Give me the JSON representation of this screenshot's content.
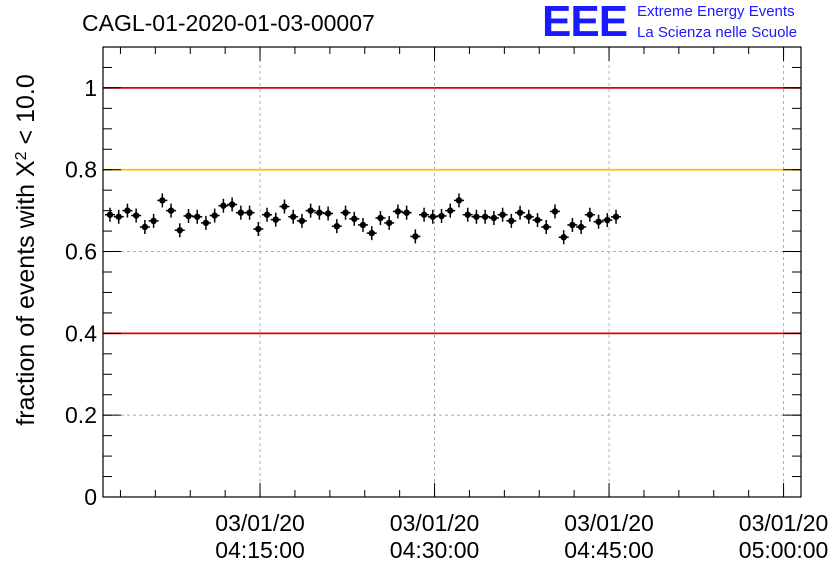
{
  "header": {
    "title": "CAGL-01-2020-01-03-00007",
    "logo_text": "EEE",
    "logo_line1": "Extreme Energy Events",
    "logo_line2": "La Scienza nelle Scuole"
  },
  "colors": {
    "red_line": "#e00000",
    "yellow_line": "#ffc000",
    "logo": "#1a1aff",
    "points": "#000000"
  },
  "chart_data": {
    "type": "scatter",
    "title": "CAGL-01-2020-01-03-00007",
    "ylabel_main": "fraction of events with Χ",
    "ylabel_sup": "2",
    "ylabel_tail": " < 10.0",
    "ylim": [
      0,
      1.1
    ],
    "yticks": [
      "0",
      "0.2",
      "0.4",
      "0.6",
      "0.8",
      "1"
    ],
    "xlim_minutes": [
      0,
      40
    ],
    "xticks": [
      {
        "date": "03/01/20",
        "time": "04:15:00",
        "minute": 9
      },
      {
        "date": "03/01/20",
        "time": "04:30:00",
        "minute": 19
      },
      {
        "date": "03/01/20",
        "time": "04:45:00",
        "minute": 29
      },
      {
        "date": "03/01/20",
        "time": "05:00:00",
        "minute": 39
      }
    ],
    "reference_lines": [
      {
        "y": 1.0,
        "color": "red"
      },
      {
        "y": 0.8,
        "color": "yellow"
      },
      {
        "y": 0.4,
        "color": "red"
      }
    ],
    "grid": true,
    "series": [
      {
        "x_step_minutes": 0.5,
        "y": [
          0.69,
          0.685,
          0.7,
          0.688,
          0.66,
          0.675,
          0.725,
          0.7,
          0.652,
          0.687,
          0.685,
          0.67,
          0.688,
          0.712,
          0.715,
          0.695,
          0.695,
          0.655,
          0.69,
          0.678,
          0.71,
          0.685,
          0.675,
          0.7,
          0.695,
          0.693,
          0.662,
          0.695,
          0.68,
          0.665,
          0.645,
          0.682,
          0.67,
          0.698,
          0.695,
          0.637,
          0.69,
          0.685,
          0.687,
          0.7,
          0.725,
          0.69,
          0.685,
          0.685,
          0.682,
          0.69,
          0.675,
          0.695,
          0.685,
          0.677,
          0.66,
          0.698,
          0.635,
          0.665,
          0.66,
          0.69,
          0.673,
          0.677,
          0.685
        ]
      }
    ]
  }
}
